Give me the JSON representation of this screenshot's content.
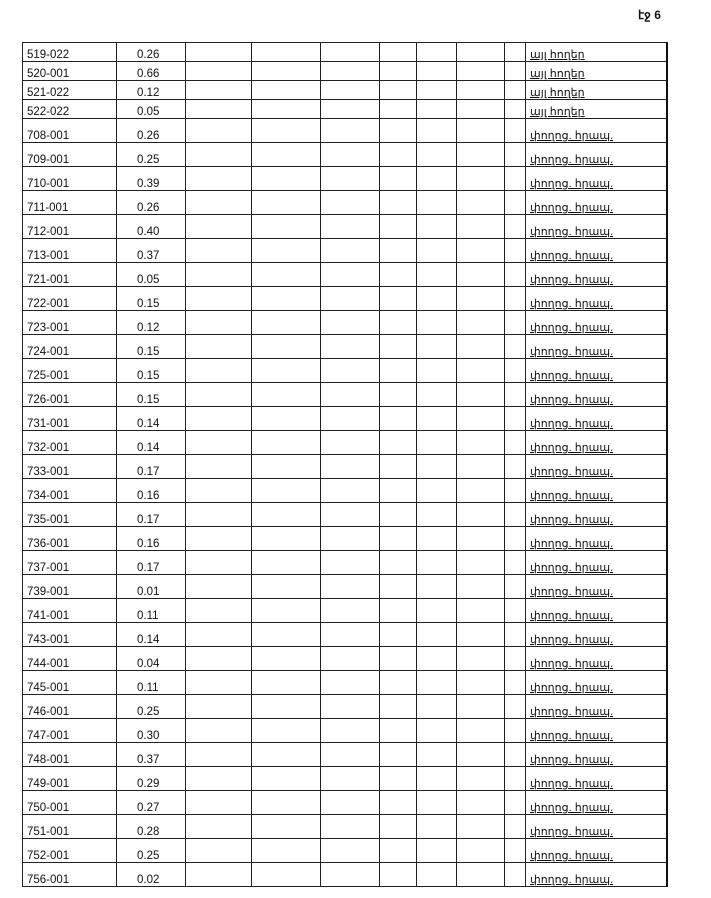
{
  "page_number": "էջ 6",
  "rows": [
    {
      "code": "519-022",
      "area": "0.26",
      "use": "այլ հողեր"
    },
    {
      "code": "520-001",
      "area": "0.66",
      "use": "այլ հողեր"
    },
    {
      "code": "521-022",
      "area": "0.12",
      "use": "այլ հողեր"
    },
    {
      "code": "522-022",
      "area": "0.05",
      "use": "այլ հողեր"
    },
    {
      "code": "708-001",
      "area": "0.26",
      "use": "փողոց. հրապ."
    },
    {
      "code": "709-001",
      "area": "0.25",
      "use": "փողոց. հրապ."
    },
    {
      "code": "710-001",
      "area": "0.39",
      "use": "փողոց. հրապ."
    },
    {
      "code": "711-001",
      "area": "0.26",
      "use": "փողոց. հրապ."
    },
    {
      "code": "712-001",
      "area": "0.40",
      "use": "փողոց. հրապ."
    },
    {
      "code": "713-001",
      "area": "0.37",
      "use": "փողոց. հրապ."
    },
    {
      "code": "721-001",
      "area": "0.05",
      "use": "փողոց. հրապ."
    },
    {
      "code": "722-001",
      "area": "0.15",
      "use": "փողոց. հրապ."
    },
    {
      "code": "723-001",
      "area": "0.12",
      "use": "փողոց. հրապ."
    },
    {
      "code": "724-001",
      "area": "0.15",
      "use": "փողոց. հրապ."
    },
    {
      "code": "725-001",
      "area": "0.15",
      "use": "փողոց. հրապ."
    },
    {
      "code": "726-001",
      "area": "0.15",
      "use": "փողոց. հրապ."
    },
    {
      "code": "731-001",
      "area": "0.14",
      "use": "փողոց. հրապ."
    },
    {
      "code": "732-001",
      "area": "0.14",
      "use": "փողոց. հրապ."
    },
    {
      "code": "733-001",
      "area": "0.17",
      "use": "փողոց. հրապ."
    },
    {
      "code": "734-001",
      "area": "0.16",
      "use": "փողոց. հրապ."
    },
    {
      "code": "735-001",
      "area": "0.17",
      "use": "փողոց. հրապ."
    },
    {
      "code": "736-001",
      "area": "0.16",
      "use": "փողոց. հրապ."
    },
    {
      "code": "737-001",
      "area": "0.17",
      "use": "փողոց. հրապ."
    },
    {
      "code": "739-001",
      "area": "0.01",
      "use": "փողոց. հրապ."
    },
    {
      "code": "741-001",
      "area": "0.11",
      "use": "փողոց. հրապ."
    },
    {
      "code": "743-001",
      "area": "0.14",
      "use": "փողոց. հրապ."
    },
    {
      "code": "744-001",
      "area": "0.04",
      "use": "փողոց. հրապ."
    },
    {
      "code": "745-001",
      "area": "0.11",
      "use": "փողոց. հրապ."
    },
    {
      "code": "746-001",
      "area": "0.25",
      "use": "փողոց. հրապ."
    },
    {
      "code": "747-001",
      "area": "0.30",
      "use": "փողոց. հրապ."
    },
    {
      "code": "748-001",
      "area": "0.37",
      "use": "փողոց. հրապ."
    },
    {
      "code": "749-001",
      "area": "0.29",
      "use": "փողոց. հրապ."
    },
    {
      "code": "750-001",
      "area": "0.27",
      "use": "փողոց. հրապ."
    },
    {
      "code": "751-001",
      "area": "0.28",
      "use": "փողոց. հրապ."
    },
    {
      "code": "752-001",
      "area": "0.25",
      "use": "փողոց. հրապ."
    },
    {
      "code": "756-001",
      "area": "0.02",
      "use": "փողոց. հրապ."
    }
  ]
}
